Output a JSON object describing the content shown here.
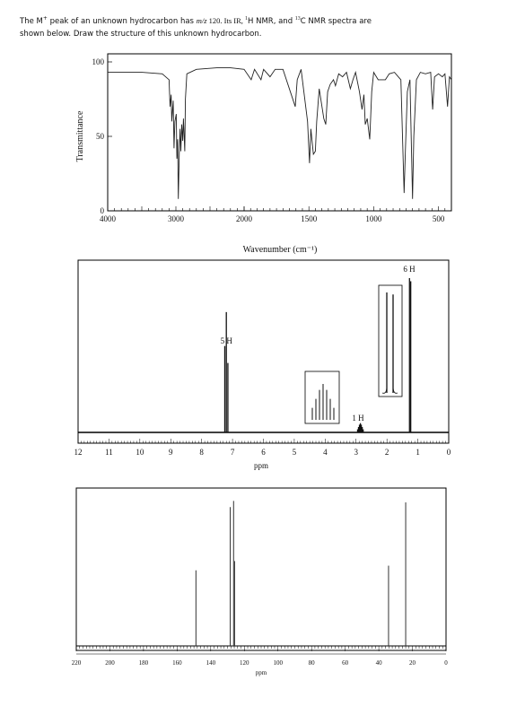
{
  "question": {
    "p1": "The M",
    "sup1": "+",
    "p2": " peak of an unknown hydrocarbon has ",
    "mz": "m/z",
    "p3": " 120. Its IR, ",
    "sup_h": "1",
    "p4": "H NMR, and ",
    "sup_c": "13",
    "p5": "C NMR spectra are",
    "line2": "shown below. Draw the structure of this unknown hydrocarbon."
  },
  "chart_data": [
    {
      "type": "line",
      "name": "IR spectrum",
      "xlabel": "Wavenumber (cm⁻¹)",
      "ylabel": "Transmittance",
      "xlim": [
        4000,
        400
      ],
      "ylim": [
        0,
        100
      ],
      "xticks": [
        "4000",
        "3000",
        "2000",
        "1500",
        "1000",
        "500"
      ],
      "yticks": [
        "100",
        "50",
        "0"
      ],
      "points": [
        [
          4000,
          93
        ],
        [
          3500,
          93
        ],
        [
          3200,
          92
        ],
        [
          3100,
          88
        ],
        [
          3085,
          70
        ],
        [
          3070,
          78
        ],
        [
          3060,
          60
        ],
        [
          3040,
          74
        ],
        [
          3028,
          42
        ],
        [
          3015,
          60
        ],
        [
          2995,
          65
        ],
        [
          2985,
          35
        ],
        [
          2975,
          48
        ],
        [
          2965,
          8
        ],
        [
          2950,
          40
        ],
        [
          2940,
          55
        ],
        [
          2928,
          40
        ],
        [
          2915,
          58
        ],
        [
          2900,
          47
        ],
        [
          2890,
          62
        ],
        [
          2870,
          40
        ],
        [
          2860,
          75
        ],
        [
          2840,
          92
        ],
        [
          2700,
          95
        ],
        [
          2400,
          96
        ],
        [
          2200,
          96
        ],
        [
          2000,
          95
        ],
        [
          1945,
          88
        ],
        [
          1920,
          95
        ],
        [
          1870,
          88
        ],
        [
          1850,
          95
        ],
        [
          1800,
          90
        ],
        [
          1760,
          95
        ],
        [
          1700,
          95
        ],
        [
          1605,
          70
        ],
        [
          1590,
          88
        ],
        [
          1560,
          95
        ],
        [
          1510,
          60
        ],
        [
          1495,
          32
        ],
        [
          1485,
          55
        ],
        [
          1465,
          38
        ],
        [
          1450,
          40
        ],
        [
          1440,
          60
        ],
        [
          1420,
          82
        ],
        [
          1385,
          62
        ],
        [
          1370,
          58
        ],
        [
          1355,
          80
        ],
        [
          1335,
          85
        ],
        [
          1310,
          88
        ],
        [
          1295,
          84
        ],
        [
          1270,
          92
        ],
        [
          1240,
          90
        ],
        [
          1210,
          93
        ],
        [
          1180,
          82
        ],
        [
          1160,
          88
        ],
        [
          1140,
          93
        ],
        [
          1110,
          80
        ],
        [
          1090,
          68
        ],
        [
          1075,
          78
        ],
        [
          1065,
          58
        ],
        [
          1050,
          62
        ],
        [
          1030,
          48
        ],
        [
          1015,
          80
        ],
        [
          1000,
          93
        ],
        [
          965,
          88
        ],
        [
          910,
          88
        ],
        [
          880,
          92
        ],
        [
          840,
          93
        ],
        [
          790,
          88
        ],
        [
          765,
          12
        ],
        [
          755,
          40
        ],
        [
          740,
          80
        ],
        [
          720,
          88
        ],
        [
          700,
          8
        ],
        [
          690,
          50
        ],
        [
          670,
          88
        ],
        [
          640,
          93
        ],
        [
          600,
          92
        ],
        [
          560,
          93
        ],
        [
          545,
          68
        ],
        [
          530,
          90
        ],
        [
          500,
          92
        ],
        [
          470,
          90
        ],
        [
          450,
          92
        ],
        [
          430,
          70
        ],
        [
          415,
          90
        ],
        [
          400,
          88
        ]
      ]
    },
    {
      "type": "line",
      "name": "1H NMR spectrum",
      "xlabel": "ppm",
      "xlim": [
        12,
        0
      ],
      "xticks": [
        "12",
        "11",
        "10",
        "9",
        "8",
        "7",
        "6",
        "5",
        "4",
        "3",
        "2",
        "1",
        "0"
      ],
      "peaks": [
        {
          "ppm": 7.25,
          "height": 0.56
        },
        {
          "ppm": 7.2,
          "height": 0.78
        },
        {
          "ppm": 7.15,
          "height": 0.45
        },
        {
          "ppm": 2.95,
          "height": 0.02
        },
        {
          "ppm": 2.92,
          "height": 0.035
        },
        {
          "ppm": 2.89,
          "height": 0.05
        },
        {
          "ppm": 2.86,
          "height": 0.06
        },
        {
          "ppm": 2.83,
          "height": 0.05
        },
        {
          "ppm": 2.8,
          "height": 0.035
        },
        {
          "ppm": 2.77,
          "height": 0.02
        },
        {
          "ppm": 1.27,
          "height": 1.0
        },
        {
          "ppm": 1.23,
          "height": 0.98
        }
      ],
      "annotations": [
        "5 H",
        "1 H",
        "6 H"
      ]
    },
    {
      "type": "bar",
      "name": "13C NMR spectrum",
      "xlabel": "ppm",
      "xlim": [
        220,
        0
      ],
      "xticks": [
        "220",
        "200",
        "180",
        "160",
        "140",
        "120",
        "100",
        "80",
        "60",
        "40",
        "20",
        "0"
      ],
      "peaks": [
        {
          "ppm": 148.8,
          "height": 0.49
        },
        {
          "ppm": 128.4,
          "height": 0.9
        },
        {
          "ppm": 126.4,
          "height": 0.94
        },
        {
          "ppm": 125.8,
          "height": 0.55
        },
        {
          "ppm": 34.2,
          "height": 0.52
        },
        {
          "ppm": 24.0,
          "height": 0.93
        }
      ]
    }
  ]
}
